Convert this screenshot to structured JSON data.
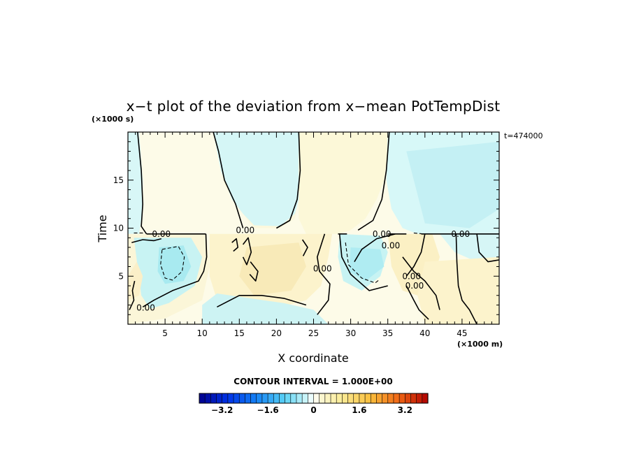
{
  "chart_data": {
    "type": "heatmap",
    "title": "x−t plot of the deviation from x−mean PotTempDist",
    "xlabel": "X coordinate",
    "ylabel": "Time",
    "x_unit": "(×1000 m)",
    "y_unit": "(×1000 s)",
    "time_note": "t=474000",
    "xlim": [
      0,
      50
    ],
    "ylim": [
      0,
      20
    ],
    "x_ticks": [
      5,
      10,
      15,
      20,
      25,
      30,
      35,
      40,
      45
    ],
    "y_ticks": [
      5,
      10,
      15
    ],
    "contour_interval_text": "CONTOUR INTERVAL = 1.000E+00",
    "contour_labels": [
      "0.00",
      "0.00",
      "0.00",
      "0.00",
      "0.00",
      "0.00",
      "0.00",
      "0.00",
      "0.00"
    ],
    "colorbar": {
      "min": -4.0,
      "max": 4.0,
      "step": 0.2,
      "tick_values": [
        -3.2,
        -1.6,
        0,
        1.6,
        3.2
      ],
      "tick_labels": [
        "−3.2",
        "−1.6",
        "0",
        "1.6",
        "3.2"
      ]
    },
    "regions": [
      {
        "value": -0.2,
        "color": "#d8f7f7",
        "points": [
          [
            0,
            20
          ],
          [
            1.5,
            20
          ],
          [
            2,
            15
          ],
          [
            2,
            12
          ],
          [
            1.5,
            9.4
          ],
          [
            0,
            9.4
          ]
        ]
      },
      {
        "value": 0.2,
        "color": "#fcf8dc",
        "points": [
          [
            1.5,
            20
          ],
          [
            23,
            20
          ],
          [
            23,
            14
          ],
          [
            22.5,
            11
          ],
          [
            20.5,
            10
          ],
          [
            17,
            10
          ],
          [
            16,
            11
          ],
          [
            15,
            12
          ],
          [
            13,
            14.5
          ],
          [
            12,
            18
          ],
          [
            11.5,
            20
          ]
        ]
      },
      {
        "value": -0.3,
        "color": "#d5f6f6",
        "points": [
          [
            11.5,
            20
          ],
          [
            23,
            20
          ],
          [
            23,
            13
          ],
          [
            22.5,
            11.5
          ],
          [
            20.5,
            10.2
          ],
          [
            17,
            10.3
          ],
          [
            15.5,
            11.5
          ],
          [
            14,
            13
          ],
          [
            12.5,
            16
          ]
        ]
      },
      {
        "value": 0.2,
        "color": "#fcf8d8",
        "points": [
          [
            23,
            20
          ],
          [
            35,
            20
          ],
          [
            35,
            18
          ],
          [
            34.5,
            15
          ],
          [
            33.5,
            13
          ],
          [
            32,
            11
          ],
          [
            30,
            9.8
          ],
          [
            28.5,
            9.4
          ],
          [
            24,
            9.4
          ],
          [
            23,
            11
          ]
        ]
      },
      {
        "value": -0.3,
        "color": "#d7f8f8",
        "points": [
          [
            35,
            20
          ],
          [
            50,
            20
          ],
          [
            50,
            9.4
          ],
          [
            39,
            9.4
          ],
          [
            37,
            10
          ],
          [
            35.5,
            12
          ],
          [
            34.8,
            15
          ]
        ]
      },
      {
        "value": -0.5,
        "color": "#c4f0f4",
        "points": [
          [
            37.5,
            18
          ],
          [
            50,
            19
          ],
          [
            50,
            12
          ],
          [
            46,
            10
          ],
          [
            40,
            10.5
          ]
        ]
      },
      {
        "value": 0.2,
        "color": "#fbf6d8",
        "points": [
          [
            0,
            9.4
          ],
          [
            10.5,
            9.4
          ],
          [
            11,
            6
          ],
          [
            10,
            2.5
          ],
          [
            5,
            0.6
          ],
          [
            0,
            0
          ]
        ]
      },
      {
        "value": -0.5,
        "color": "#c8f3f3",
        "points": [
          [
            0.8,
            9
          ],
          [
            8.5,
            9
          ],
          [
            10,
            7
          ],
          [
            9,
            4
          ],
          [
            5.5,
            2.2
          ],
          [
            3,
            1.6
          ],
          [
            1.8,
            3
          ],
          [
            1.3,
            6
          ]
        ]
      },
      {
        "value": -0.9,
        "color": "#a8eaf0",
        "points": [
          [
            4.2,
            8
          ],
          [
            7.5,
            8.2
          ],
          [
            8.5,
            6
          ],
          [
            7.5,
            4.5
          ],
          [
            5,
            4.2
          ],
          [
            4,
            5.5
          ]
        ]
      },
      {
        "value": 0.3,
        "color": "#fbefc8",
        "points": [
          [
            0,
            5
          ],
          [
            1.2,
            6.5
          ],
          [
            2,
            5
          ],
          [
            1.5,
            3
          ],
          [
            0,
            2.5
          ]
        ]
      },
      {
        "value": 0.3,
        "color": "#fcf3cc",
        "points": [
          [
            11,
            9.4
          ],
          [
            27.5,
            9.4
          ],
          [
            27,
            7
          ],
          [
            26,
            4
          ],
          [
            24,
            2.5
          ],
          [
            20,
            1.7
          ],
          [
            15,
            1.5
          ],
          [
            12,
            2.5
          ],
          [
            11,
            5
          ]
        ]
      },
      {
        "value": 0.5,
        "color": "#f8eab8",
        "points": [
          [
            16,
            8
          ],
          [
            23,
            8.5
          ],
          [
            24,
            6
          ],
          [
            22,
            3.5
          ],
          [
            17,
            3
          ],
          [
            15,
            5
          ]
        ]
      },
      {
        "value": -0.4,
        "color": "#cdf3f3",
        "points": [
          [
            12,
            3.2
          ],
          [
            21,
            2.2
          ],
          [
            25,
            1.5
          ],
          [
            27,
            0
          ],
          [
            10,
            0
          ],
          [
            10,
            2
          ]
        ]
      },
      {
        "value": -0.5,
        "color": "#c7f3f3",
        "points": [
          [
            28.5,
            9.4
          ],
          [
            34,
            9.2
          ],
          [
            35,
            7.5
          ],
          [
            34,
            5
          ],
          [
            31.5,
            3.5
          ],
          [
            29,
            4.5
          ],
          [
            28.3,
            7
          ]
        ]
      },
      {
        "value": -0.8,
        "color": "#afecf2",
        "points": [
          [
            30,
            8
          ],
          [
            34,
            7.8
          ],
          [
            34.5,
            6
          ],
          [
            32,
            4.5
          ],
          [
            29.8,
            5.5
          ]
        ]
      },
      {
        "value": 0.4,
        "color": "#fbf0c4",
        "points": [
          [
            35,
            9.4
          ],
          [
            41,
            9.4
          ],
          [
            42,
            7
          ],
          [
            41,
            4.5
          ],
          [
            39,
            3
          ],
          [
            37,
            3.5
          ],
          [
            35.5,
            6
          ]
        ]
      },
      {
        "value": -0.3,
        "color": "#d6f6f6",
        "points": [
          [
            42,
            9.4
          ],
          [
            50,
            9.4
          ],
          [
            50,
            7
          ],
          [
            47,
            6.5
          ],
          [
            44,
            7.5
          ]
        ]
      },
      {
        "value": 0.3,
        "color": "#fcf3cc",
        "points": [
          [
            40,
            6.5
          ],
          [
            50,
            7
          ],
          [
            50,
            0
          ],
          [
            40,
            0
          ],
          [
            39,
            3
          ]
        ]
      }
    ],
    "contours": [
      {
        "style": "solid",
        "points": [
          [
            1.3,
            20
          ],
          [
            1.8,
            16
          ],
          [
            2,
            12.5
          ],
          [
            1.8,
            10.2
          ],
          [
            2.5,
            9.4
          ]
        ]
      },
      {
        "style": "solid",
        "points": [
          [
            11.5,
            20
          ],
          [
            12.2,
            18
          ],
          [
            13,
            15
          ],
          [
            14.5,
            12.5
          ],
          [
            15.5,
            10
          ]
        ]
      },
      {
        "style": "solid",
        "points": [
          [
            23,
            20
          ],
          [
            23.2,
            16
          ],
          [
            22.8,
            13
          ],
          [
            21.8,
            10.8
          ],
          [
            20,
            10
          ]
        ]
      },
      {
        "style": "solid",
        "points": [
          [
            35.2,
            20
          ],
          [
            34.8,
            16
          ],
          [
            34.2,
            13
          ],
          [
            33,
            10.8
          ],
          [
            31,
            9.8
          ]
        ]
      },
      {
        "style": "solid",
        "points": [
          [
            2.5,
            9.4
          ],
          [
            10.5,
            9.4
          ]
        ]
      },
      {
        "style": "solid",
        "points": [
          [
            28.3,
            9.4
          ],
          [
            29.5,
            9.4
          ]
        ]
      },
      {
        "style": "solid",
        "points": [
          [
            35,
            9.4
          ],
          [
            37.5,
            9.4
          ]
        ]
      },
      {
        "style": "solid",
        "points": [
          [
            39.5,
            9.4
          ],
          [
            50,
            9.4
          ]
        ]
      },
      {
        "style": "solid",
        "points": [
          [
            0.5,
            8.5
          ],
          [
            2,
            8.8
          ],
          [
            3.5,
            8.7
          ],
          [
            4.5,
            8.9
          ]
        ]
      },
      {
        "style": "solid",
        "points": [
          [
            10.5,
            9.4
          ],
          [
            10.6,
            7
          ],
          [
            10.2,
            5.5
          ],
          [
            9.5,
            4.5
          ],
          [
            6,
            3.5
          ],
          [
            3.5,
            2.5
          ],
          [
            2,
            1.8
          ]
        ]
      },
      {
        "style": "solid",
        "points": [
          [
            12,
            1.8
          ],
          [
            15,
            3
          ],
          [
            18,
            3
          ],
          [
            21,
            2.7
          ],
          [
            24,
            2
          ]
        ]
      },
      {
        "style": "solid",
        "points": [
          [
            0.2,
            1.5
          ],
          [
            0.8,
            2.5
          ],
          [
            0.6,
            3.5
          ],
          [
            0.9,
            4.5
          ]
        ]
      },
      {
        "style": "solid",
        "points": [
          [
            26.5,
            9.4
          ],
          [
            25.5,
            7
          ],
          [
            25.8,
            5.5
          ],
          [
            27.2,
            4.2
          ],
          [
            27,
            2.5
          ],
          [
            25.5,
            1
          ]
        ]
      },
      {
        "style": "solid",
        "points": [
          [
            28.5,
            9.4
          ],
          [
            28.8,
            7
          ],
          [
            30,
            5.2
          ],
          [
            32.5,
            3.5
          ],
          [
            35,
            4
          ]
        ]
      },
      {
        "style": "solid",
        "points": [
          [
            36,
            9.4
          ],
          [
            33.5,
            8.9
          ],
          [
            31.5,
            7.8
          ],
          [
            30.5,
            6.5
          ]
        ]
      },
      {
        "style": "solid",
        "points": [
          [
            40,
            9.4
          ],
          [
            39.5,
            7.5
          ],
          [
            38.5,
            6
          ],
          [
            37.5,
            5
          ]
        ]
      },
      {
        "style": "solid",
        "points": [
          [
            37,
            7
          ],
          [
            38.5,
            5.5
          ],
          [
            40,
            4.5
          ],
          [
            41.5,
            3
          ],
          [
            42,
            1.5
          ]
        ]
      },
      {
        "style": "solid",
        "points": [
          [
            37.5,
            4
          ],
          [
            38.5,
            2.5
          ],
          [
            39.2,
            1.5
          ],
          [
            40.5,
            0.5
          ]
        ]
      },
      {
        "style": "solid",
        "points": [
          [
            44.2,
            9.4
          ],
          [
            44.3,
            6.5
          ],
          [
            44.5,
            4
          ],
          [
            45,
            2.5
          ],
          [
            46,
            1.5
          ],
          [
            47,
            0
          ]
        ]
      },
      {
        "style": "solid",
        "points": [
          [
            47,
            9.4
          ],
          [
            47.3,
            7.5
          ],
          [
            48.5,
            6.5
          ],
          [
            50,
            6.7
          ]
        ]
      },
      {
        "style": "solid",
        "points": [
          [
            15.5,
            8.3
          ],
          [
            16.2,
            9
          ],
          [
            16.6,
            7.5
          ],
          [
            16,
            6.2
          ],
          [
            15.5,
            7
          ]
        ]
      },
      {
        "style": "solid",
        "points": [
          [
            14,
            8.5
          ],
          [
            14.6,
            8.9
          ],
          [
            14.8,
            8
          ],
          [
            14.2,
            7.6
          ]
        ]
      },
      {
        "style": "solid",
        "points": [
          [
            16.5,
            6.5
          ],
          [
            17.5,
            5.5
          ],
          [
            17.2,
            4.5
          ],
          [
            16.4,
            5.2
          ]
        ]
      },
      {
        "style": "solid",
        "points": [
          [
            23.5,
            8.8
          ],
          [
            24.2,
            8
          ],
          [
            23.6,
            7.1
          ]
        ]
      },
      {
        "style": "dashed",
        "points": [
          [
            4.6,
            7.8
          ],
          [
            6.8,
            8.1
          ],
          [
            7.6,
            7
          ],
          [
            7.3,
            5.5
          ],
          [
            6,
            4.6
          ],
          [
            5,
            4.8
          ],
          [
            4.4,
            6.2
          ],
          [
            4.6,
            7.8
          ]
        ]
      },
      {
        "style": "dashed",
        "points": [
          [
            29.3,
            8.5
          ],
          [
            29.7,
            6.2
          ],
          [
            31.5,
            4.8
          ],
          [
            33.3,
            4.3
          ],
          [
            33.8,
            4.6
          ]
        ]
      },
      {
        "style": "dashed",
        "points": [
          [
            0.8,
            9.5
          ],
          [
            2.3,
            9.5
          ]
        ]
      },
      {
        "style": "dashed",
        "points": [
          [
            38.5,
            9.5
          ],
          [
            39.8,
            9.4
          ]
        ]
      }
    ],
    "contour_label_positions": [
      [
        4.5,
        9.4
      ],
      [
        15.8,
        9.8
      ],
      [
        34.2,
        9.4
      ],
      [
        35.4,
        8.2
      ],
      [
        44.8,
        9.4
      ],
      [
        2.4,
        1.7
      ],
      [
        26.2,
        5.8
      ],
      [
        38.2,
        5.0
      ],
      [
        38.6,
        4.0
      ]
    ]
  }
}
